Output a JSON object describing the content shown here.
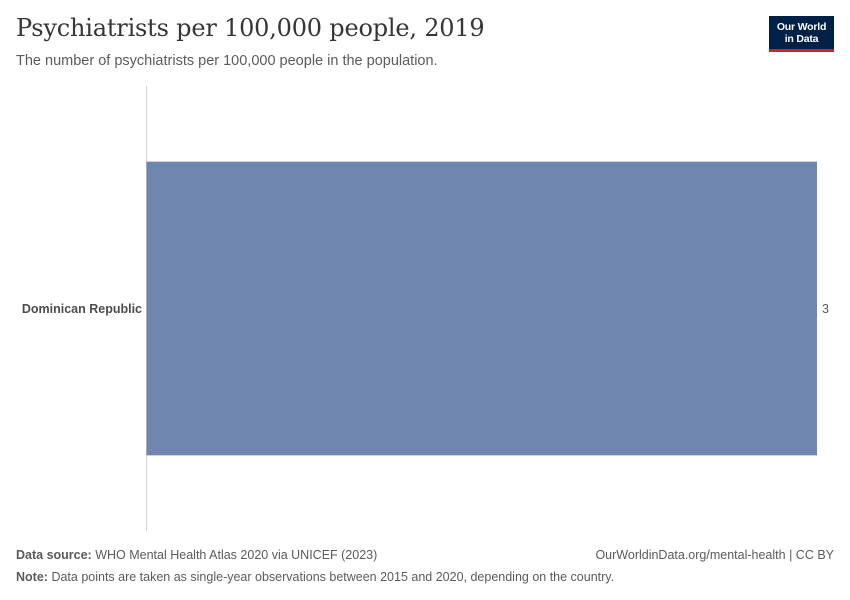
{
  "header": {
    "title": "Psychiatrists per 100,000 people, 2019",
    "subtitle": "The number of psychiatrists per 100,000 people in the population.",
    "logo_line1": "Our World",
    "logo_line2": "in Data"
  },
  "chart_data": {
    "type": "bar",
    "orientation": "horizontal",
    "title": "Psychiatrists per 100,000 people, 2019",
    "subtitle": "The number of psychiatrists per 100,000 people in the population.",
    "categories": [
      "Dominican Republic"
    ],
    "values": [
      3
    ],
    "value_labels": [
      "3"
    ],
    "xlabel": "",
    "ylabel": "",
    "xlim": [
      0,
      3
    ],
    "grid": false,
    "legend": "none",
    "bar_color": "#6f87ae"
  },
  "footer": {
    "source_label": "Data source:",
    "source_text": "WHO Mental Health Atlas 2020 via UNICEF (2023)",
    "note_label": "Note:",
    "note_text": "Data points are taken as single-year observations between 2015 and 2020, depending on the country.",
    "credit_link": "OurWorldinData.org/mental-health",
    "credit_separator": " | ",
    "license": "CC BY"
  },
  "colors": {
    "bar": "#6f87ae",
    "brand_navy": "#002147",
    "brand_red": "#ce261e",
    "text_dark": "#363636",
    "text_muted": "#5b5b5b",
    "axis_line": "#d3d3d3"
  }
}
